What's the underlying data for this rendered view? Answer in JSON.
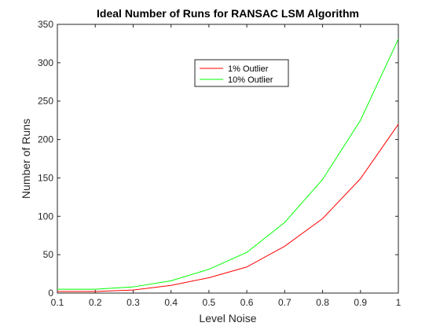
{
  "chart_data": {
    "type": "line",
    "title": "Ideal Number of Runs for RANSAC LSM Algorithm",
    "xlabel": "Level Noise",
    "ylabel": "Number of Runs",
    "x": [
      0.1,
      0.2,
      0.3,
      0.4,
      0.5,
      0.6,
      0.7,
      0.8,
      0.9,
      1.0
    ],
    "xlim": [
      0.1,
      1.0
    ],
    "ylim": [
      0,
      350
    ],
    "x_ticks": [
      "0.1",
      "0.2",
      "0.3",
      "0.4",
      "0.5",
      "0.6",
      "0.7",
      "0.8",
      "0.9",
      "1"
    ],
    "y_ticks": [
      "0",
      "50",
      "100",
      "150",
      "200",
      "250",
      "300",
      "350"
    ],
    "grid": false,
    "legend_position": "upper-center",
    "series": [
      {
        "name": "1% Outlier",
        "color": "#ff0000",
        "values": [
          2,
          2,
          4,
          10,
          20,
          34,
          61,
          97,
          149,
          220
        ]
      },
      {
        "name": "10% Outlier",
        "color": "#00ff00",
        "values": [
          5,
          5,
          8,
          16,
          31,
          53,
          92,
          148,
          225,
          331
        ]
      }
    ]
  }
}
